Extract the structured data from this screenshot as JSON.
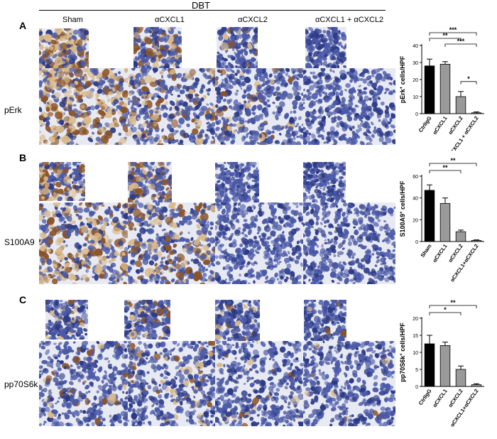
{
  "header": {
    "title": "DBT",
    "columns": [
      "Sham",
      "αCXCL1",
      "αCXCL2",
      "αCXCL1 + αCXCL2"
    ]
  },
  "panels": [
    {
      "letter": "A",
      "row_label": "pErk"
    },
    {
      "letter": "B",
      "row_label": "S100A9"
    },
    {
      "letter": "C",
      "row_label": "pp70S6k"
    }
  ],
  "chart_data": [
    {
      "type": "bar",
      "panel": "A",
      "categories": [
        "CtrlIgG",
        "αCXCL1",
        "αCXCL2",
        "αCXCL1 + αCXCL2"
      ],
      "values": [
        28,
        29,
        10,
        0.5
      ],
      "errors": [
        4,
        1.5,
        3,
        0.5
      ],
      "bar_colors": [
        "#000000",
        "#9a9a9a",
        "#9a9a9a",
        "#9a9a9a"
      ],
      "ylabel_main": "pErk",
      "ylabel_sup": "+",
      "ylabel_rest": " cells/HPF",
      "ylim": [
        0,
        40
      ],
      "yticks": [
        "0",
        "10",
        "20",
        "30",
        "40"
      ],
      "significance": [
        {
          "from": 0,
          "to": 3,
          "label": "***"
        },
        {
          "from": 0,
          "to": 2,
          "label": "**"
        },
        {
          "from": 1,
          "to": 3,
          "label": "***"
        },
        {
          "from": 2,
          "to": 3,
          "label": "*"
        }
      ]
    },
    {
      "type": "bar",
      "panel": "B",
      "categories": [
        "Sham",
        "αCXCL1",
        "αCXCL2",
        "αCXCL1+αCXCL2"
      ],
      "values": [
        47,
        35,
        9,
        1
      ],
      "errors": [
        5,
        5,
        1.5,
        0.5
      ],
      "bar_colors": [
        "#000000",
        "#9a9a9a",
        "#9a9a9a",
        "#9a9a9a"
      ],
      "ylabel_main": "S100A9",
      "ylabel_sup": "+",
      "ylabel_rest": " cells/HPF",
      "ylim": [
        0,
        60
      ],
      "yticks": [
        "0",
        "20",
        "40",
        "60"
      ],
      "significance": [
        {
          "from": 0,
          "to": 3,
          "label": "**"
        },
        {
          "from": 0,
          "to": 2,
          "label": "**"
        }
      ]
    },
    {
      "type": "bar",
      "panel": "C",
      "categories": [
        "CtrlIgG",
        "αCXCL1",
        "αCXCL2",
        "αCXCL1+αCXCL2"
      ],
      "values": [
        12.5,
        12,
        5,
        0.5
      ],
      "errors": [
        2.5,
        1,
        1,
        0.3
      ],
      "bar_colors": [
        "#000000",
        "#9a9a9a",
        "#9a9a9a",
        "#9a9a9a"
      ],
      "ylabel_main": "pp70S6k",
      "ylabel_sup": "+",
      "ylabel_rest": " cells/HPF",
      "ylim": [
        0,
        20
      ],
      "yticks": [
        "0",
        "5",
        "10",
        "15",
        "20"
      ],
      "significance": [
        {
          "from": 0,
          "to": 3,
          "label": "**"
        },
        {
          "from": 0,
          "to": 2,
          "label": "*"
        }
      ]
    }
  ],
  "micrographs": {
    "stain_colors": {
      "background": "#e8eaf3",
      "nucleus": "#4b5aa8",
      "nucleus_dark": "#2c3a86",
      "brown": "#8a5428",
      "tan": "#d9b98a"
    },
    "brown_level": [
      [
        0.55,
        0.25,
        0.08,
        0.0
      ],
      [
        0.45,
        0.3,
        0.0,
        0.0
      ],
      [
        0.08,
        0.12,
        0.06,
        0.03
      ]
    ]
  }
}
